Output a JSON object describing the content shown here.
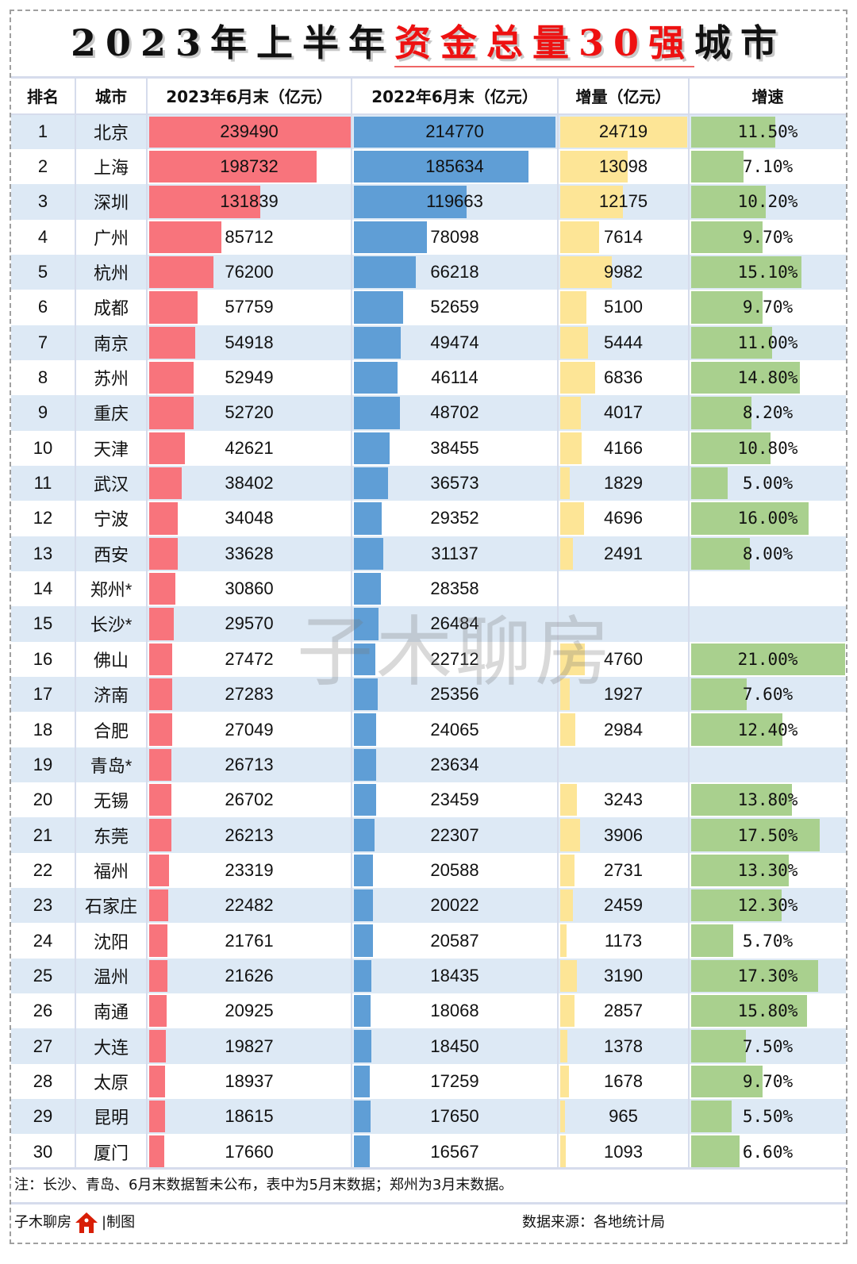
{
  "title": {
    "part1": "2023年上半年",
    "highlight": "资金总量30强",
    "part2": "城市"
  },
  "columns": [
    "排名",
    "城市",
    "2023年6月末（亿元）",
    "2022年6月末（亿元）",
    "增量（亿元）",
    "增速"
  ],
  "colors": {
    "bar_2023": "#f8747c",
    "bar_2022": "#5f9ed6",
    "bar_increment": "#fde596",
    "bar_growth": "#a9d08e",
    "row_alt": "#dde9f5",
    "title_highlight": "#ee1111"
  },
  "rows": [
    {
      "rank": "1",
      "city": "北京",
      "v2023": "239490",
      "v2022": "214770",
      "inc": "24719",
      "growth": "11.50%"
    },
    {
      "rank": "2",
      "city": "上海",
      "v2023": "198732",
      "v2022": "185634",
      "inc": "13098",
      "growth": "7.10%"
    },
    {
      "rank": "3",
      "city": "深圳",
      "v2023": "131839",
      "v2022": "119663",
      "inc": "12175",
      "growth": "10.20%"
    },
    {
      "rank": "4",
      "city": "广州",
      "v2023": "85712",
      "v2022": "78098",
      "inc": "7614",
      "growth": "9.70%"
    },
    {
      "rank": "5",
      "city": "杭州",
      "v2023": "76200",
      "v2022": "66218",
      "inc": "9982",
      "growth": "15.10%"
    },
    {
      "rank": "6",
      "city": "成都",
      "v2023": "57759",
      "v2022": "52659",
      "inc": "5100",
      "growth": "9.70%"
    },
    {
      "rank": "7",
      "city": "南京",
      "v2023": "54918",
      "v2022": "49474",
      "inc": "5444",
      "growth": "11.00%"
    },
    {
      "rank": "8",
      "city": "苏州",
      "v2023": "52949",
      "v2022": "46114",
      "inc": "6836",
      "growth": "14.80%"
    },
    {
      "rank": "9",
      "city": "重庆",
      "v2023": "52720",
      "v2022": "48702",
      "inc": "4017",
      "growth": "8.20%"
    },
    {
      "rank": "10",
      "city": "天津",
      "v2023": "42621",
      "v2022": "38455",
      "inc": "4166",
      "growth": "10.80%"
    },
    {
      "rank": "11",
      "city": "武汉",
      "v2023": "38402",
      "v2022": "36573",
      "inc": "1829",
      "growth": "5.00%"
    },
    {
      "rank": "12",
      "city": "宁波",
      "v2023": "34048",
      "v2022": "29352",
      "inc": "4696",
      "growth": "16.00%"
    },
    {
      "rank": "13",
      "city": "西安",
      "v2023": "33628",
      "v2022": "31137",
      "inc": "2491",
      "growth": "8.00%"
    },
    {
      "rank": "14",
      "city": "郑州*",
      "v2023": "30860",
      "v2022": "28358",
      "inc": "",
      "growth": ""
    },
    {
      "rank": "15",
      "city": "长沙*",
      "v2023": "29570",
      "v2022": "26484",
      "inc": "",
      "growth": ""
    },
    {
      "rank": "16",
      "city": "佛山",
      "v2023": "27472",
      "v2022": "22712",
      "inc": "4760",
      "growth": "21.00%"
    },
    {
      "rank": "17",
      "city": "济南",
      "v2023": "27283",
      "v2022": "25356",
      "inc": "1927",
      "growth": "7.60%"
    },
    {
      "rank": "18",
      "city": "合肥",
      "v2023": "27049",
      "v2022": "24065",
      "inc": "2984",
      "growth": "12.40%"
    },
    {
      "rank": "19",
      "city": "青岛*",
      "v2023": "26713",
      "v2022": "23634",
      "inc": "",
      "growth": ""
    },
    {
      "rank": "20",
      "city": "无锡",
      "v2023": "26702",
      "v2022": "23459",
      "inc": "3243",
      "growth": "13.80%"
    },
    {
      "rank": "21",
      "city": "东莞",
      "v2023": "26213",
      "v2022": "22307",
      "inc": "3906",
      "growth": "17.50%"
    },
    {
      "rank": "22",
      "city": "福州",
      "v2023": "23319",
      "v2022": "20588",
      "inc": "2731",
      "growth": "13.30%"
    },
    {
      "rank": "23",
      "city": "石家庄",
      "v2023": "22482",
      "v2022": "20022",
      "inc": "2459",
      "growth": "12.30%"
    },
    {
      "rank": "24",
      "city": "沈阳",
      "v2023": "21761",
      "v2022": "20587",
      "inc": "1173",
      "growth": "5.70%"
    },
    {
      "rank": "25",
      "city": "温州",
      "v2023": "21626",
      "v2022": "18435",
      "inc": "3190",
      "growth": "17.30%"
    },
    {
      "rank": "26",
      "city": "南通",
      "v2023": "20925",
      "v2022": "18068",
      "inc": "2857",
      "growth": "15.80%"
    },
    {
      "rank": "27",
      "city": "大连",
      "v2023": "19827",
      "v2022": "18450",
      "inc": "1378",
      "growth": "7.50%"
    },
    {
      "rank": "28",
      "city": "太原",
      "v2023": "18937",
      "v2022": "17259",
      "inc": "1678",
      "growth": "9.70%"
    },
    {
      "rank": "29",
      "city": "昆明",
      "v2023": "18615",
      "v2022": "17650",
      "inc": "965",
      "growth": "5.50%"
    },
    {
      "rank": "30",
      "city": "厦门",
      "v2023": "17660",
      "v2022": "16567",
      "inc": "1093",
      "growth": "6.60%"
    }
  ],
  "note": "注：长沙、青岛、6月末数据暂未公布，表中为5月末数据；郑州为3月末数据。",
  "footer": {
    "brand": "子木聊房",
    "made": "|制图",
    "source": "数据来源：各地统计局"
  },
  "watermark": "子木聊房",
  "chart_data": {
    "type": "table",
    "title": "2023年上半年资金总量30强城市",
    "columns": [
      "排名",
      "城市",
      "2023年6月末（亿元）",
      "2022年6月末（亿元）",
      "增量（亿元）",
      "增速"
    ],
    "categories": [
      "北京",
      "上海",
      "深圳",
      "广州",
      "杭州",
      "成都",
      "南京",
      "苏州",
      "重庆",
      "天津",
      "武汉",
      "宁波",
      "西安",
      "郑州*",
      "长沙*",
      "佛山",
      "济南",
      "合肥",
      "青岛*",
      "无锡",
      "东莞",
      "福州",
      "石家庄",
      "沈阳",
      "温州",
      "南通",
      "大连",
      "太原",
      "昆明",
      "厦门"
    ],
    "series": [
      {
        "name": "2023年6月末（亿元）",
        "values": [
          239490,
          198732,
          131839,
          85712,
          76200,
          57759,
          54918,
          52949,
          52720,
          42621,
          38402,
          34048,
          33628,
          30860,
          29570,
          27472,
          27283,
          27049,
          26713,
          26702,
          26213,
          23319,
          22482,
          21761,
          21626,
          20925,
          19827,
          18937,
          18615,
          17660
        ]
      },
      {
        "name": "2022年6月末（亿元）",
        "values": [
          214770,
          185634,
          119663,
          78098,
          66218,
          52659,
          49474,
          46114,
          48702,
          38455,
          36573,
          29352,
          31137,
          28358,
          26484,
          22712,
          25356,
          24065,
          23634,
          23459,
          22307,
          20588,
          20022,
          20587,
          18435,
          18068,
          18450,
          17259,
          17650,
          16567
        ]
      },
      {
        "name": "增量（亿元）",
        "values": [
          24719,
          13098,
          12175,
          7614,
          9982,
          5100,
          5444,
          6836,
          4017,
          4166,
          1829,
          4696,
          2491,
          null,
          null,
          4760,
          1927,
          2984,
          null,
          3243,
          3906,
          2731,
          2459,
          1173,
          3190,
          2857,
          1378,
          1678,
          965,
          1093
        ]
      },
      {
        "name": "增速(%)",
        "values": [
          11.5,
          7.1,
          10.2,
          9.7,
          15.1,
          9.7,
          11.0,
          14.8,
          8.2,
          10.8,
          5.0,
          16.0,
          8.0,
          null,
          null,
          21.0,
          7.6,
          12.4,
          null,
          13.8,
          17.5,
          13.3,
          12.3,
          5.7,
          17.3,
          15.8,
          7.5,
          9.7,
          5.5,
          6.6
        ]
      }
    ],
    "note": "注：长沙、青岛、6月末数据暂未公布，表中为5月末数据；郑州为3月末数据。",
    "source": "数据来源：各地统计局"
  }
}
